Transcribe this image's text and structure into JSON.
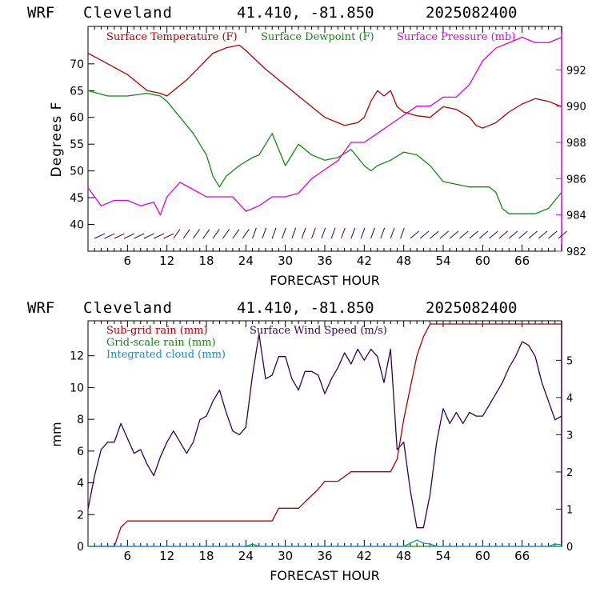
{
  "charts": {
    "top": {
      "header": {
        "model": "WRF",
        "station": "Cleveland",
        "coords": "41.410, -81.850",
        "run": "2025082400"
      },
      "xlabel": "FORECAST HOUR",
      "ylabel_left": "Degrees F",
      "legend": [
        "Surface Temperature (F)",
        "Surface Dewpoint (F)",
        "Surface Pressure (mb)"
      ]
    },
    "bottom": {
      "header": {
        "model": "WRF",
        "station": "Cleveland",
        "coords": "41.410, -81.850",
        "run": "2025082400"
      },
      "xlabel": "FORECAST HOUR",
      "ylabel_left": "mm",
      "legend": [
        "Sub-grid rain (mm)",
        "Surface Wind Speed (m/s)",
        "Grid-scale rain (mm)",
        "Integrated cloud (mm)"
      ]
    }
  },
  "chart_data": [
    {
      "type": "line",
      "colors": {
        "temperature": "#b00000",
        "dewpoint": "#118811",
        "pressure": "#e000e0",
        "wind_barbs": "#330055"
      },
      "xlim": [
        0,
        72
      ],
      "x_ticks": [
        6,
        12,
        18,
        24,
        30,
        36,
        42,
        48,
        54,
        60,
        66
      ],
      "ylim_left": [
        35,
        77
      ],
      "y_ticks_left": [
        40,
        45,
        50,
        55,
        60,
        65,
        70
      ],
      "ylim_right": [
        982,
        994.4
      ],
      "y_ticks_right": [
        982,
        984,
        986,
        988,
        990,
        992
      ],
      "series": [
        {
          "name": "Surface Temperature (F)",
          "axis": "left",
          "x": [
            0,
            3,
            6,
            9,
            11,
            12,
            15,
            17,
            19,
            21,
            23,
            24,
            27,
            30,
            33,
            36,
            38,
            39,
            41,
            42,
            43,
            44,
            45,
            46,
            47,
            48,
            50,
            52,
            54,
            56,
            58,
            59,
            60,
            61,
            62,
            64,
            66,
            68,
            70,
            72
          ],
          "y": [
            72,
            70,
            68,
            65,
            64.5,
            64,
            67,
            69.5,
            72,
            73,
            73.5,
            72.5,
            69,
            66,
            63,
            60,
            59,
            58.5,
            59,
            60,
            63,
            65,
            64,
            65,
            62,
            61,
            60.3,
            60,
            62,
            61.5,
            60,
            58.5,
            58,
            58.5,
            59,
            61,
            62.5,
            63.5,
            63,
            62
          ]
        },
        {
          "name": "Surface Dewpoint (F)",
          "axis": "left",
          "x": [
            0,
            3,
            6,
            9,
            11,
            12,
            14,
            16,
            18,
            19,
            20,
            21,
            23,
            25,
            26,
            27,
            28,
            29,
            30,
            31,
            32,
            34,
            36,
            38,
            40,
            42,
            43,
            44,
            46,
            48,
            50,
            52,
            54,
            56,
            58,
            60,
            61,
            62,
            63,
            64,
            66,
            68,
            70,
            72
          ],
          "y": [
            65,
            64,
            64,
            64.5,
            64,
            63,
            60,
            57,
            53,
            49,
            47,
            49,
            51,
            52.5,
            53,
            55,
            57,
            54,
            51,
            53,
            55,
            53,
            52,
            52.5,
            54,
            51,
            50,
            51,
            52,
            53.5,
            53,
            51,
            48,
            47.5,
            47,
            47,
            47,
            46,
            43,
            42,
            42,
            42,
            43,
            46
          ]
        },
        {
          "name": "Surface Pressure (mb)",
          "axis": "right",
          "x": [
            0,
            2,
            4,
            6,
            8,
            10,
            11,
            12,
            14,
            16,
            18,
            20,
            22,
            24,
            26,
            28,
            30,
            32,
            34,
            36,
            38,
            40,
            42,
            44,
            46,
            48,
            50,
            52,
            54,
            56,
            58,
            60,
            62,
            64,
            66,
            68,
            70,
            72
          ],
          "y": [
            985.5,
            984.5,
            984.8,
            984.8,
            984.5,
            984.7,
            984,
            985,
            985.8,
            985.4,
            985,
            985,
            985,
            984.2,
            984.5,
            985,
            985,
            985.2,
            986,
            986.5,
            987,
            988,
            988,
            988.5,
            989,
            989.5,
            990,
            990,
            990.5,
            990.5,
            991.2,
            992.5,
            993.2,
            993.5,
            993.8,
            993.5,
            993.5,
            993.8
          ]
        }
      ]
    },
    {
      "type": "line",
      "colors": {
        "subgrid": "#b00000",
        "wind": "#330055",
        "gridscale": "#118811",
        "cloud": "#1e88d0"
      },
      "xlim": [
        0,
        72
      ],
      "x_ticks": [
        6,
        12,
        18,
        24,
        30,
        36,
        42,
        48,
        54,
        60,
        66
      ],
      "ylim_left": [
        0,
        14.2
      ],
      "y_ticks_left": [
        0,
        2,
        4,
        6,
        8,
        10,
        12
      ],
      "ylim_right": [
        0,
        6.06
      ],
      "y_ticks_right": [
        0,
        1,
        2,
        3,
        4,
        5
      ],
      "series": [
        {
          "name": "Sub-grid rain (mm)",
          "axis": "left",
          "x": [
            0,
            4,
            5,
            6,
            28,
            29,
            32,
            35,
            36,
            38,
            40,
            46,
            47,
            48,
            49,
            50,
            51,
            52,
            72
          ],
          "y": [
            0,
            0,
            1.2,
            1.6,
            1.6,
            2.4,
            2.4,
            3.6,
            4.1,
            4.1,
            4.7,
            4.7,
            5.5,
            8,
            10,
            12,
            13.2,
            14,
            14
          ]
        },
        {
          "name": "Surface Wind Speed (m/s)",
          "axis": "right",
          "x": [
            0,
            1,
            2,
            3,
            4,
            5,
            6,
            7,
            8,
            9,
            10,
            11,
            12,
            13,
            14,
            15,
            16,
            17,
            18,
            19,
            20,
            21,
            22,
            23,
            24,
            25,
            26,
            27,
            28,
            29,
            30,
            31,
            32,
            33,
            34,
            35,
            36,
            37,
            38,
            39,
            40,
            41,
            42,
            43,
            44,
            45,
            46,
            47,
            48,
            49,
            50,
            51,
            52,
            53,
            54,
            55,
            56,
            57,
            58,
            59,
            60,
            61,
            62,
            63,
            64,
            65,
            66,
            67,
            68,
            69,
            70,
            71,
            72
          ],
          "y": [
            1.0,
            1.9,
            2.6,
            2.8,
            2.8,
            3.3,
            2.9,
            2.5,
            2.6,
            2.2,
            1.9,
            2.4,
            2.8,
            3.1,
            2.8,
            2.5,
            2.8,
            3.4,
            3.5,
            3.9,
            4.2,
            3.6,
            3.1,
            3.0,
            3.2,
            4.6,
            5.7,
            4.5,
            4.6,
            5.1,
            5.1,
            4.5,
            4.2,
            4.7,
            4.7,
            4.6,
            4.1,
            4.5,
            4.8,
            5.2,
            4.9,
            5.3,
            5.0,
            5.3,
            5.1,
            4.4,
            5.3,
            2.6,
            2.8,
            1.5,
            0.5,
            0.5,
            1.4,
            2.8,
            3.7,
            3.3,
            3.6,
            3.3,
            3.6,
            3.5,
            3.5,
            3.8,
            4.1,
            4.4,
            4.8,
            5.1,
            5.5,
            5.4,
            5.1,
            4.4,
            3.9,
            3.4,
            3.5
          ]
        },
        {
          "name": "Grid-scale rain (mm)",
          "axis": "left",
          "x": [
            0,
            72
          ],
          "y": [
            0,
            0
          ]
        },
        {
          "name": "Integrated cloud (mm)",
          "axis": "left",
          "x": [
            0,
            24,
            25,
            26,
            48,
            49,
            50,
            51,
            52,
            53,
            70,
            71,
            72
          ],
          "y": [
            0,
            0,
            0.15,
            0,
            0,
            0.2,
            0.4,
            0.2,
            0.15,
            0,
            0,
            0.15,
            0.1
          ]
        }
      ]
    }
  ]
}
